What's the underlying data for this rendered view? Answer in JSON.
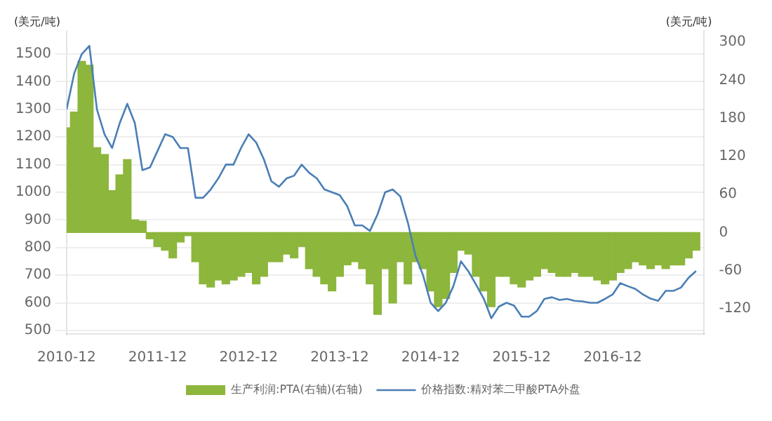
{
  "chart_data": {
    "type": "bar",
    "ylabel": "(美元/吨)",
    "y2label": "(美元/吨)",
    "x": [
      "2010-12",
      "2011-01",
      "2011-02",
      "2011-03",
      "2011-04",
      "2011-05",
      "2011-06",
      "2011-07",
      "2011-08",
      "2011-09",
      "2011-10",
      "2011-11",
      "2011-12",
      "2012-01",
      "2012-02",
      "2012-03",
      "2012-04",
      "2012-05",
      "2012-06",
      "2012-07",
      "2012-08",
      "2012-09",
      "2012-10",
      "2012-11",
      "2012-12",
      "2013-01",
      "2013-02",
      "2013-03",
      "2013-04",
      "2013-05",
      "2013-06",
      "2013-07",
      "2013-08",
      "2013-09",
      "2013-10",
      "2013-11",
      "2013-12",
      "2014-01",
      "2014-02",
      "2014-03",
      "2014-04",
      "2014-05",
      "2014-06",
      "2014-07",
      "2014-08",
      "2014-09",
      "2014-10",
      "2014-11",
      "2014-12",
      "2015-01",
      "2015-02",
      "2015-03",
      "2015-04",
      "2015-05",
      "2015-06",
      "2015-07",
      "2015-08",
      "2015-09",
      "2015-10",
      "2015-11",
      "2015-12",
      "2016-01",
      "2016-02",
      "2016-03",
      "2016-04",
      "2016-05",
      "2016-06",
      "2016-07",
      "2016-08",
      "2016-09",
      "2016-10",
      "2016-11",
      "2016-12",
      "2017-01",
      "2017-02",
      "2017-03",
      "2017-04",
      "2017-05",
      "2017-06",
      "2017-07",
      "2017-08",
      "2017-09",
      "2017-10",
      "2017-11"
    ],
    "series": [
      {
        "name": "生产利润:PTA(右轴)(右轴)",
        "axis": "y2",
        "color": "#8db63c",
        "values": [
          165,
          190,
          270,
          264,
          134,
          123,
          66,
          91,
          115,
          20,
          18,
          -10,
          -22,
          -28,
          -40,
          -15,
          -5,
          -46,
          -81,
          -86,
          -75,
          -81,
          -75,
          -69,
          -63,
          -81,
          -69,
          -46,
          -46,
          -34,
          -40,
          -22,
          -57,
          -69,
          -81,
          -92,
          -69,
          -51,
          -46,
          -57,
          -81,
          -129,
          -57,
          -111,
          -46,
          -81,
          -46,
          -57,
          -92,
          -117,
          -104,
          -63,
          -28,
          -34,
          -69,
          -92,
          -117,
          -69,
          -69,
          -81,
          -86,
          -75,
          -69,
          -57,
          -63,
          -69,
          -69,
          -63,
          -69,
          -69,
          -75,
          -81,
          -75,
          -63,
          -57,
          -46,
          -51,
          -57,
          -51,
          -57,
          -51,
          -51,
          -40,
          -28
        ]
      },
      {
        "name": "价格指数:精对苯二甲酸PTA外盘",
        "type": "line",
        "color": "#4a7fb5",
        "values": [
          1300,
          1430,
          1500,
          1530,
          1300,
          1210,
          1160,
          1250,
          1320,
          1250,
          1080,
          1090,
          1150,
          1210,
          1200,
          1160,
          1160,
          980,
          980,
          1010,
          1050,
          1100,
          1100,
          1160,
          1210,
          1180,
          1120,
          1040,
          1020,
          1050,
          1060,
          1100,
          1070,
          1050,
          1010,
          1000,
          990,
          950,
          880,
          880,
          860,
          920,
          1000,
          1010,
          985,
          890,
          770,
          700,
          600,
          570,
          600,
          660,
          750,
          713,
          665,
          615,
          544,
          586,
          600,
          590,
          550,
          550,
          570,
          614,
          620,
          610,
          614,
          607,
          605,
          600,
          600,
          614,
          630,
          671,
          660,
          650,
          630,
          615,
          607,
          643,
          643,
          655,
          690,
          715
        ]
      }
    ],
    "xlim": [
      "2010-12",
      "2017-12"
    ],
    "xticks": [
      "2010-12",
      "2011-12",
      "2012-12",
      "2013-12",
      "2014-12",
      "2015-12",
      "2016-12"
    ],
    "ylim": [
      487,
      1584
    ],
    "yticks": [
      500,
      600,
      700,
      800,
      900,
      1000,
      1100,
      1200,
      1300,
      1400,
      1500
    ],
    "y2lim": [
      -160,
      318
    ],
    "y2ticks": [
      -120,
      -60,
      0,
      60,
      120,
      180,
      240,
      300
    ],
    "grid": "y",
    "legend": "bottom",
    "marker": "none",
    "line_style": "solid"
  }
}
